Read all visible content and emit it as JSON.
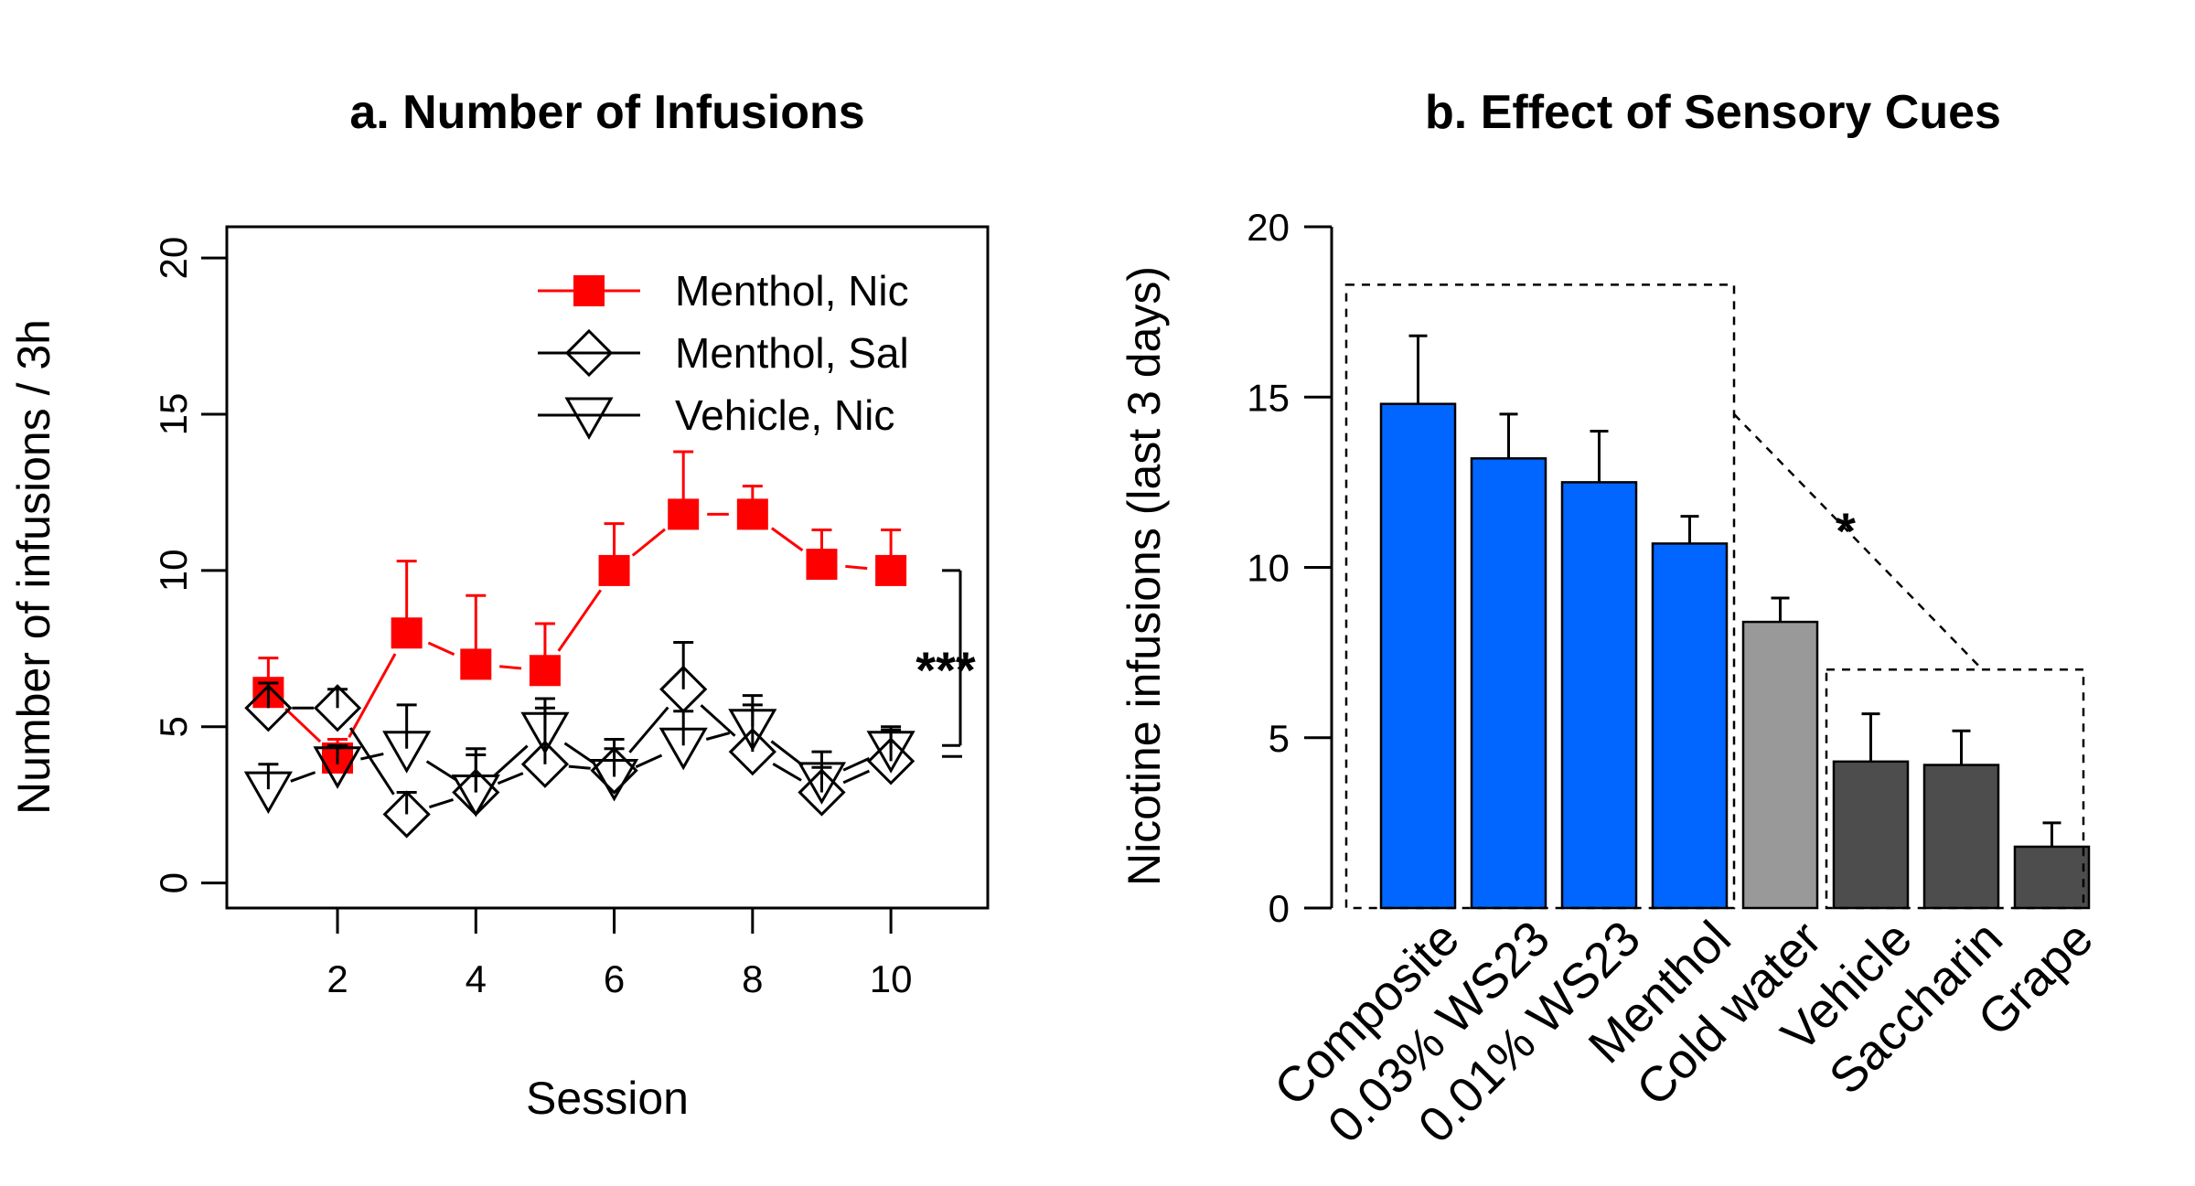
{
  "chart_data": [
    {
      "type": "line",
      "title": "a. Number of Infusions",
      "xlabel": "Session",
      "ylabel": "Number of infusions / 3h",
      "xlim": [
        0.4,
        11.4
      ],
      "ylim": [
        -0.8,
        21
      ],
      "xticks": [
        "2",
        "4",
        "6",
        "8",
        "10"
      ],
      "yticks": [
        "0",
        "5",
        "10",
        "15",
        "20"
      ],
      "legend_position": "top-right",
      "x": [
        1,
        2,
        3,
        4,
        5,
        6,
        7,
        8,
        9,
        10
      ],
      "series": [
        {
          "name": "Menthol, Nic",
          "marker": "square",
          "color": "#ff0000",
          "values": [
            6.1,
            4.0,
            8.0,
            7.0,
            6.8,
            10.0,
            11.8,
            11.8,
            10.2,
            10.0
          ],
          "error": [
            1.1,
            0.6,
            2.3,
            2.2,
            1.5,
            1.5,
            2.0,
            0.9,
            1.1,
            1.3
          ]
        },
        {
          "name": "Menthol, Sal",
          "marker": "diamond",
          "color": "#000000",
          "values": [
            5.6,
            5.6,
            2.2,
            2.9,
            3.8,
            3.6,
            6.2,
            4.2,
            2.9,
            3.9
          ],
          "error": [
            0.8,
            0.6,
            0.7,
            1.4,
            1.8,
            1.0,
            1.5,
            1.8,
            0.8,
            1.1
          ]
        },
        {
          "name": "Vehicle, Nic",
          "marker": "triangle-down",
          "color": "#000000",
          "values": [
            3.0,
            3.8,
            4.3,
            2.9,
            4.9,
            3.4,
            4.4,
            5.0,
            3.3,
            4.3
          ],
          "error": [
            0.8,
            0.6,
            1.4,
            1.2,
            1.0,
            0.9,
            1.1,
            0.7,
            0.9,
            0.6
          ]
        }
      ],
      "annotations": [
        "***"
      ]
    },
    {
      "type": "bar",
      "title": "b. Effect of Sensory Cues",
      "xlabel": "",
      "ylabel": "Nicotine infusions (last 3 days)",
      "ylim": [
        0,
        20
      ],
      "yticks": [
        "0",
        "5",
        "10",
        "15",
        "20"
      ],
      "categories": [
        "Composite",
        "0.03% WS23",
        "0.01% WS23",
        "Menthol",
        "Cold water",
        "Vehicle",
        "Saccharin",
        "Grape"
      ],
      "values": [
        14.8,
        13.2,
        12.5,
        10.7,
        8.4,
        4.3,
        4.2,
        1.8
      ],
      "error": [
        2.0,
        1.3,
        1.5,
        0.8,
        0.7,
        1.4,
        1.0,
        0.7
      ],
      "colors": [
        "#0066ff",
        "#0066ff",
        "#0066ff",
        "#0066ff",
        "#999999",
        "#4d4d4d",
        "#4d4d4d",
        "#4d4d4d"
      ],
      "annotations": [
        "*"
      ]
    }
  ]
}
